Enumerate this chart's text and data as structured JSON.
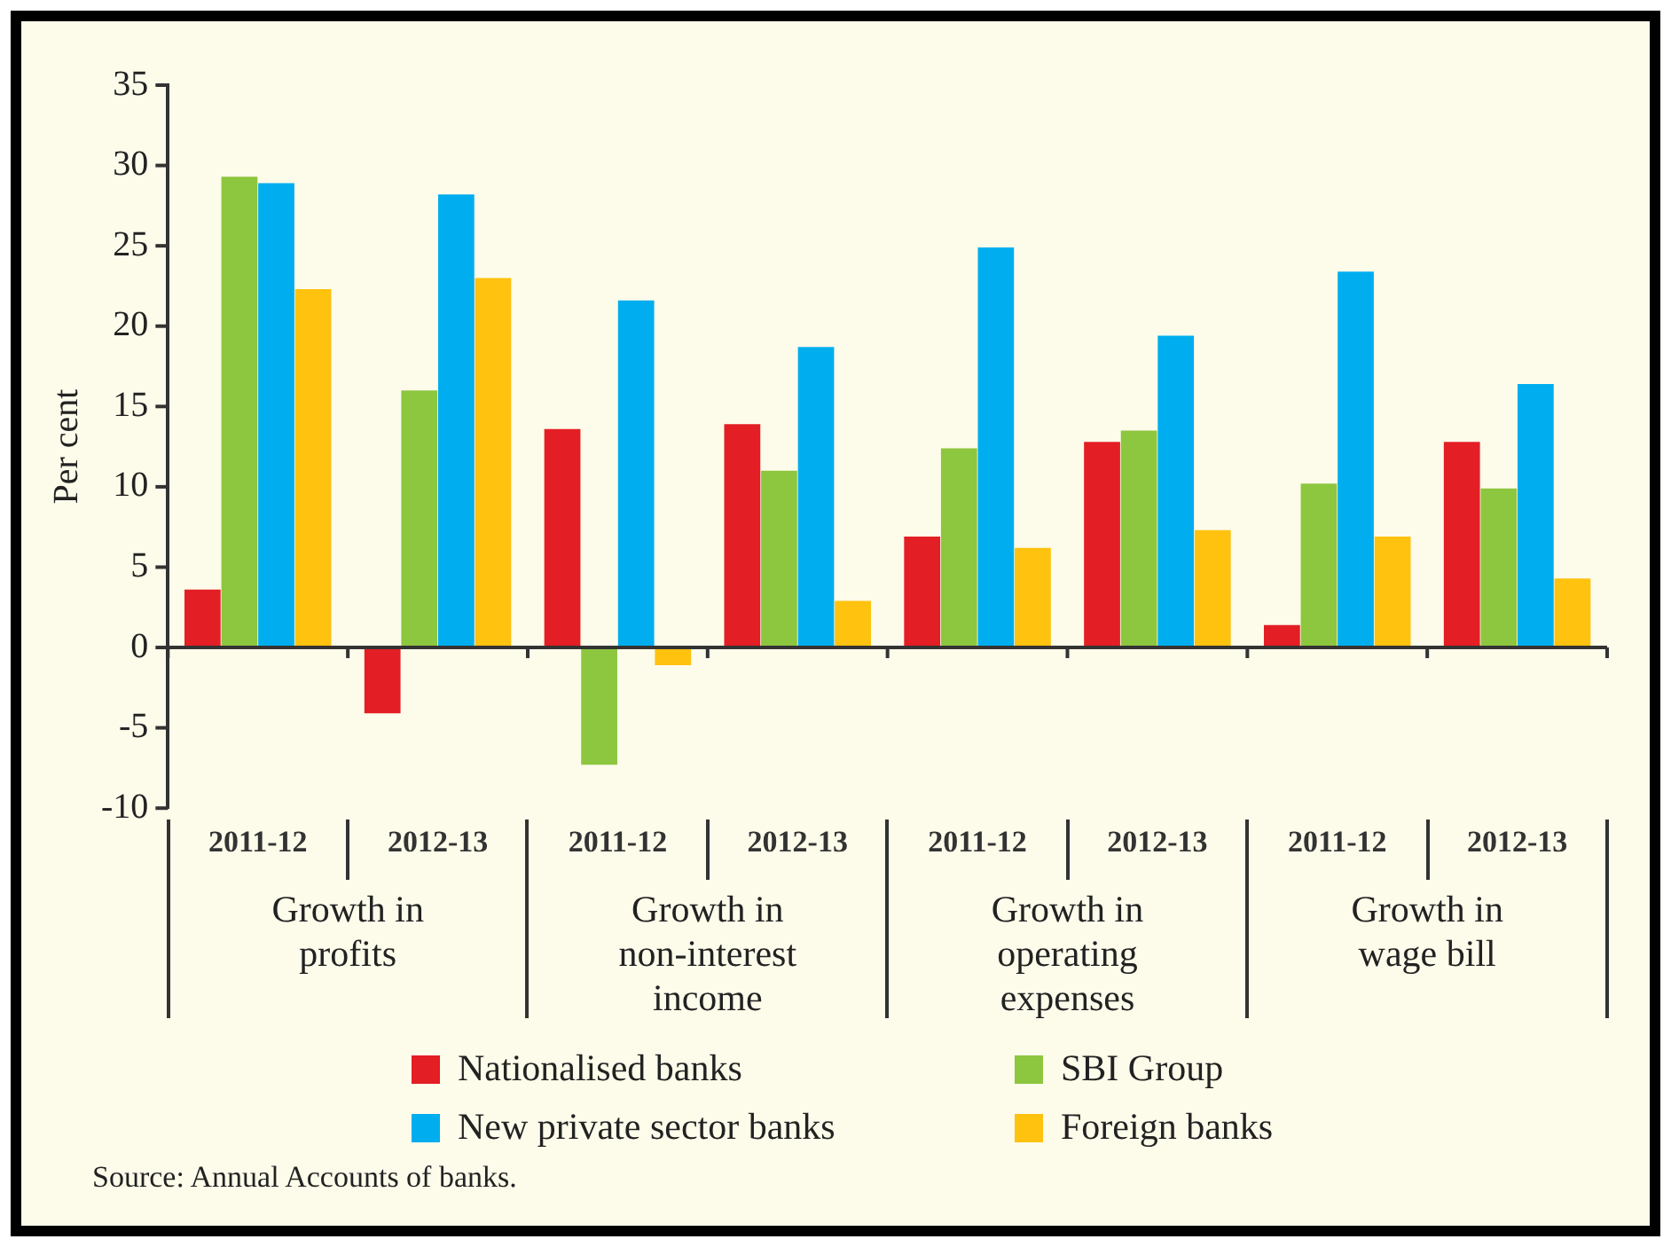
{
  "chart_data": {
    "type": "bar",
    "ylabel": "Per cent",
    "categories": [
      "2011-12",
      "2012-13",
      "2011-12",
      "2012-13",
      "2011-12",
      "2012-13",
      "2011-12",
      "2012-13"
    ],
    "series": [
      {
        "name": "Nationalised banks",
        "color": "#e31e24",
        "values": [
          3.6,
          -4.1,
          13.6,
          13.9,
          6.9,
          12.8,
          1.4,
          12.8
        ]
      },
      {
        "name": "SBI Group",
        "color": "#8dc63f",
        "values": [
          29.3,
          16.0,
          -7.3,
          11.0,
          12.4,
          13.5,
          10.2,
          9.9
        ]
      },
      {
        "name": "New private sector banks",
        "color": "#00aeef",
        "values": [
          28.9,
          28.2,
          21.6,
          18.7,
          24.9,
          19.4,
          23.4,
          16.4
        ]
      },
      {
        "name": "Foreign banks",
        "color": "#ffc20e",
        "values": [
          22.3,
          23.0,
          -1.1,
          2.9,
          6.2,
          7.3,
          6.9,
          4.3
        ]
      }
    ],
    "ref_lines": [
      {
        "axis": "y",
        "value": 0,
        "color": "#333333"
      }
    ],
    "ylim": [
      -10,
      35
    ],
    "yticks": [
      -10,
      -5,
      0,
      5,
      10,
      15,
      20,
      25,
      30,
      35
    ],
    "grid": false,
    "legend": "bottom",
    "annotations": [
      "Growth in profits",
      "Growth in non-interest income",
      "Growth in operating expenses",
      "Growth in wage bill",
      "Source: Annual Accounts of banks."
    ]
  }
}
